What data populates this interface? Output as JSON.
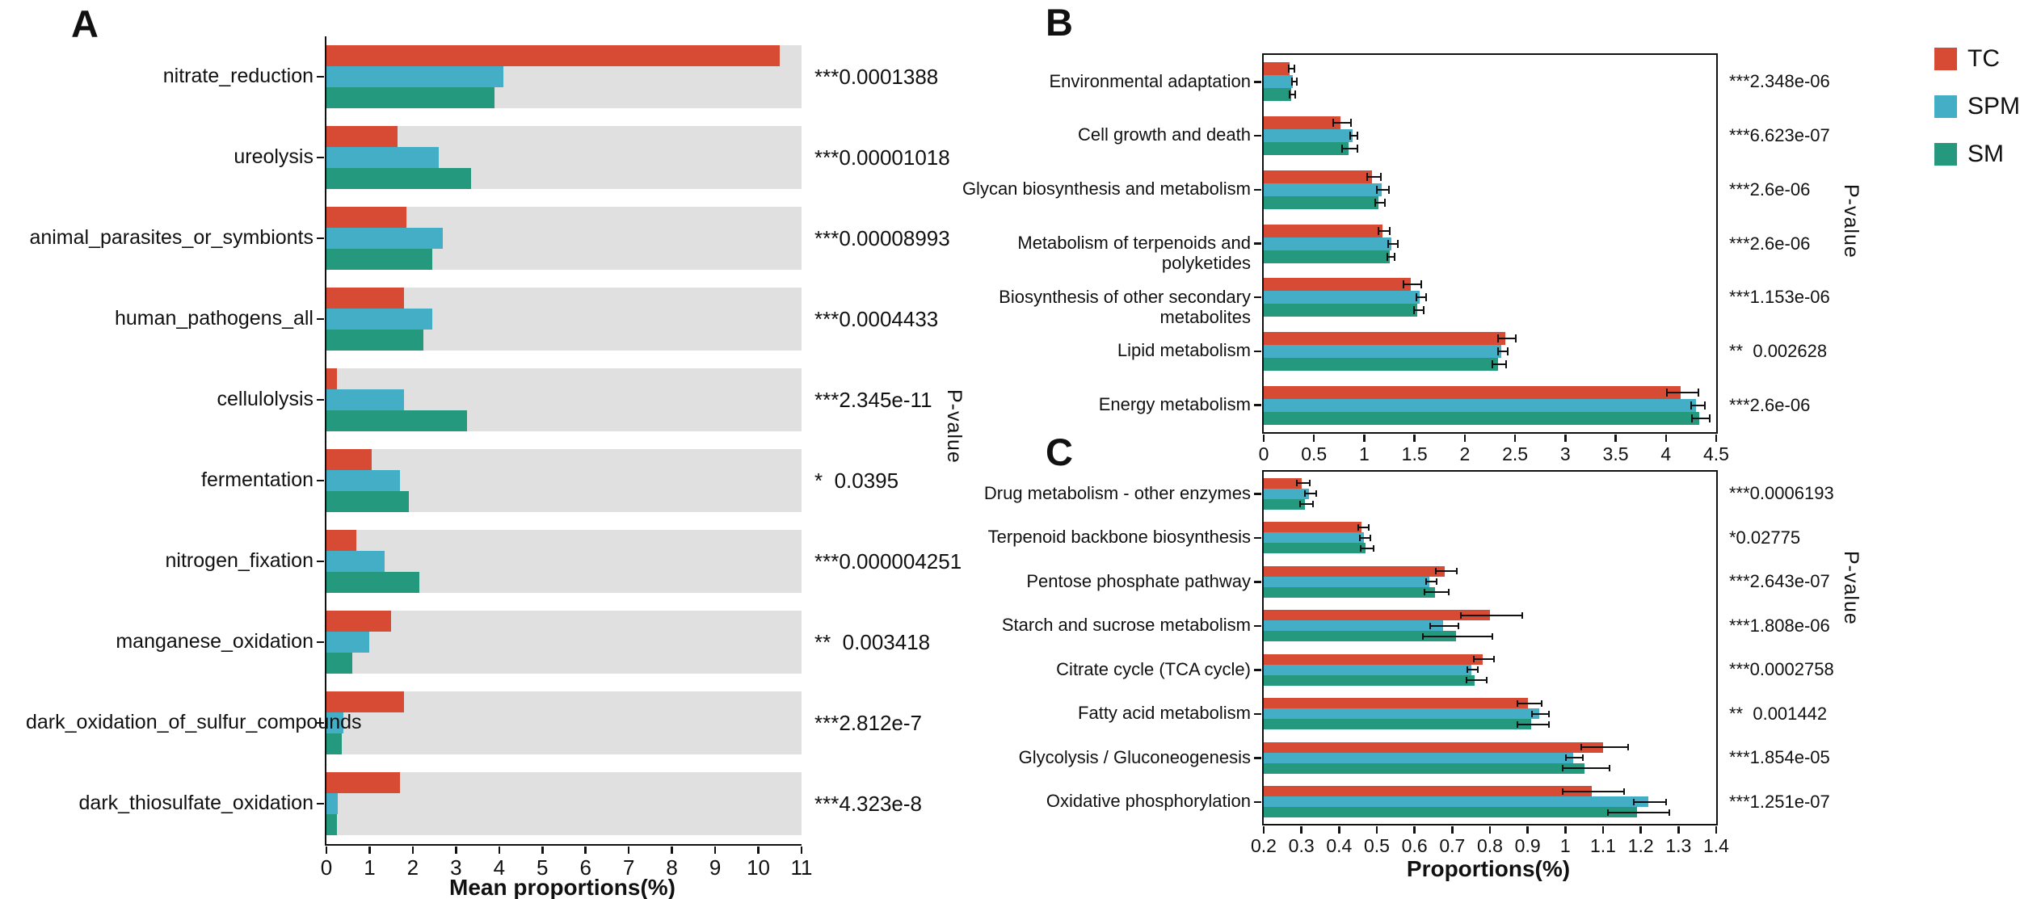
{
  "figure": {
    "legend": {
      "position": "top-right",
      "items": [
        {
          "label": "TC",
          "color": "#d74b34"
        },
        {
          "label": "SPM",
          "color": "#44aec7"
        },
        {
          "label": "SM",
          "color": "#24997e"
        }
      ]
    },
    "colors": {
      "tc": "#d74b34",
      "spm": "#44aec7",
      "sm": "#24997e",
      "track": "#e0e0e0",
      "axis": "#111111"
    }
  },
  "chart_data": [
    {
      "type": "bar",
      "panel": "A",
      "panel_letter": "A",
      "orientation": "horizontal",
      "xlabel": "Mean proportions(%)",
      "xlim": [
        0,
        11
      ],
      "xticks": [
        "0",
        "1",
        "2",
        "3",
        "4",
        "5",
        "6",
        "7",
        "8",
        "9",
        "10",
        "11"
      ],
      "grid": false,
      "background_track": true,
      "pvalue_axis_label": "P-value",
      "categories": [
        "nitrate_reduction",
        "ureolysis",
        "animal_parasites_or_symbionts",
        "human_pathogens_all",
        "cellulolysis",
        "fermentation",
        "nitrogen_fixation",
        "manganese_oxidation",
        "dark_oxidation_of_sulfur_compounds",
        "dark_thiosulfate_oxidation"
      ],
      "series": [
        {
          "name": "TC",
          "color": "#d74b34",
          "values": [
            10.5,
            1.65,
            1.85,
            1.8,
            0.25,
            1.05,
            0.7,
            1.5,
            1.8,
            1.7
          ]
        },
        {
          "name": "SPM",
          "color": "#44aec7",
          "values": [
            4.1,
            2.6,
            2.7,
            2.45,
            1.8,
            1.7,
            1.35,
            1.0,
            0.4,
            0.27
          ]
        },
        {
          "name": "SM",
          "color": "#24997e",
          "values": [
            3.9,
            3.35,
            2.45,
            2.25,
            3.25,
            1.9,
            2.15,
            0.6,
            0.35,
            0.25
          ]
        }
      ],
      "pvalues": [
        "***0.0001388",
        "***0.00001018",
        "***0.00008993",
        "***0.0004433",
        "***2.345e-11",
        "*  0.0395",
        "***0.000004251",
        "**  0.003418",
        "***2.812e-7",
        "***4.323e-8"
      ]
    },
    {
      "type": "bar",
      "panel": "B",
      "panel_letter": "B",
      "orientation": "horizontal",
      "xlabel": "",
      "xlim": [
        0,
        4.5
      ],
      "xticks": [
        "0",
        "0.5",
        "1",
        "1.5",
        "2",
        "2.5",
        "3",
        "3.5",
        "4",
        "4.5"
      ],
      "grid": false,
      "background_track": false,
      "pvalue_axis_label": "P-value",
      "categories": [
        "Environmental adaptation",
        "Cell growth and death",
        "Glycan biosynthesis and metabolism",
        "Metabolism of terpenoids and polyketides",
        "Biosynthesis of other secondary metabolites",
        "Lipid metabolism",
        "Energy metabolism"
      ],
      "series": [
        {
          "name": "TC",
          "color": "#d74b34",
          "values": [
            0.26,
            0.76,
            1.08,
            1.18,
            1.46,
            2.4,
            4.15
          ],
          "errors": [
            0.02,
            0.08,
            0.06,
            0.05,
            0.08,
            0.08,
            0.15
          ]
        },
        {
          "name": "SPM",
          "color": "#44aec7",
          "values": [
            0.29,
            0.88,
            1.17,
            1.27,
            1.55,
            2.36,
            4.3
          ],
          "errors": [
            0.015,
            0.03,
            0.05,
            0.04,
            0.04,
            0.04,
            0.06
          ]
        },
        {
          "name": "SM",
          "color": "#24997e",
          "values": [
            0.27,
            0.84,
            1.14,
            1.25,
            1.53,
            2.33,
            4.33
          ],
          "errors": [
            0.02,
            0.07,
            0.04,
            0.03,
            0.04,
            0.06,
            0.08
          ]
        }
      ],
      "pvalues": [
        "***2.348e-06",
        "***6.623e-07",
        "***2.6e-06",
        "***2.6e-06",
        "***1.153e-06",
        "**  0.002628",
        "***2.6e-06"
      ]
    },
    {
      "type": "bar",
      "panel": "C",
      "panel_letter": "C",
      "orientation": "horizontal",
      "xlabel": "Proportions(%)",
      "xlim": [
        0.2,
        1.4
      ],
      "xticks": [
        "0.2",
        "0.3",
        "0.4",
        "0.5",
        "0.6",
        "0.7",
        "0.8",
        "0.9",
        "1",
        "1.1",
        "1.2",
        "1.3",
        "1.4"
      ],
      "grid": false,
      "background_track": false,
      "pvalue_axis_label": "P-value",
      "categories": [
        "Drug metabolism - other enzymes",
        "Terpenoid backbone biosynthesis",
        "Pentose phosphate pathway",
        "Starch and sucrose metabolism",
        "Citrate cycle (TCA cycle)",
        "Fatty acid metabolism",
        "Glycolysis / Gluconeogenesis",
        "Oxidative phosphorylation"
      ],
      "series": [
        {
          "name": "TC",
          "color": "#d74b34",
          "values": [
            0.3,
            0.46,
            0.68,
            0.8,
            0.78,
            0.9,
            1.1,
            1.07
          ],
          "errors": [
            0.015,
            0.012,
            0.025,
            0.08,
            0.025,
            0.03,
            0.06,
            0.08
          ]
        },
        {
          "name": "SPM",
          "color": "#44aec7",
          "values": [
            0.32,
            0.465,
            0.64,
            0.675,
            0.75,
            0.93,
            1.02,
            1.22
          ],
          "errors": [
            0.012,
            0.012,
            0.012,
            0.035,
            0.012,
            0.02,
            0.02,
            0.04
          ]
        },
        {
          "name": "SM",
          "color": "#24997e",
          "values": [
            0.31,
            0.47,
            0.655,
            0.71,
            0.76,
            0.91,
            1.05,
            1.19
          ],
          "errors": [
            0.015,
            0.015,
            0.03,
            0.09,
            0.025,
            0.04,
            0.06,
            0.08
          ]
        }
      ],
      "pvalues": [
        "***0.0006193",
        "*0.02775",
        "***2.643e-07",
        "***1.808e-06",
        "***0.0002758",
        "**  0.001442",
        "***1.854e-05",
        "***1.251e-07"
      ]
    }
  ]
}
